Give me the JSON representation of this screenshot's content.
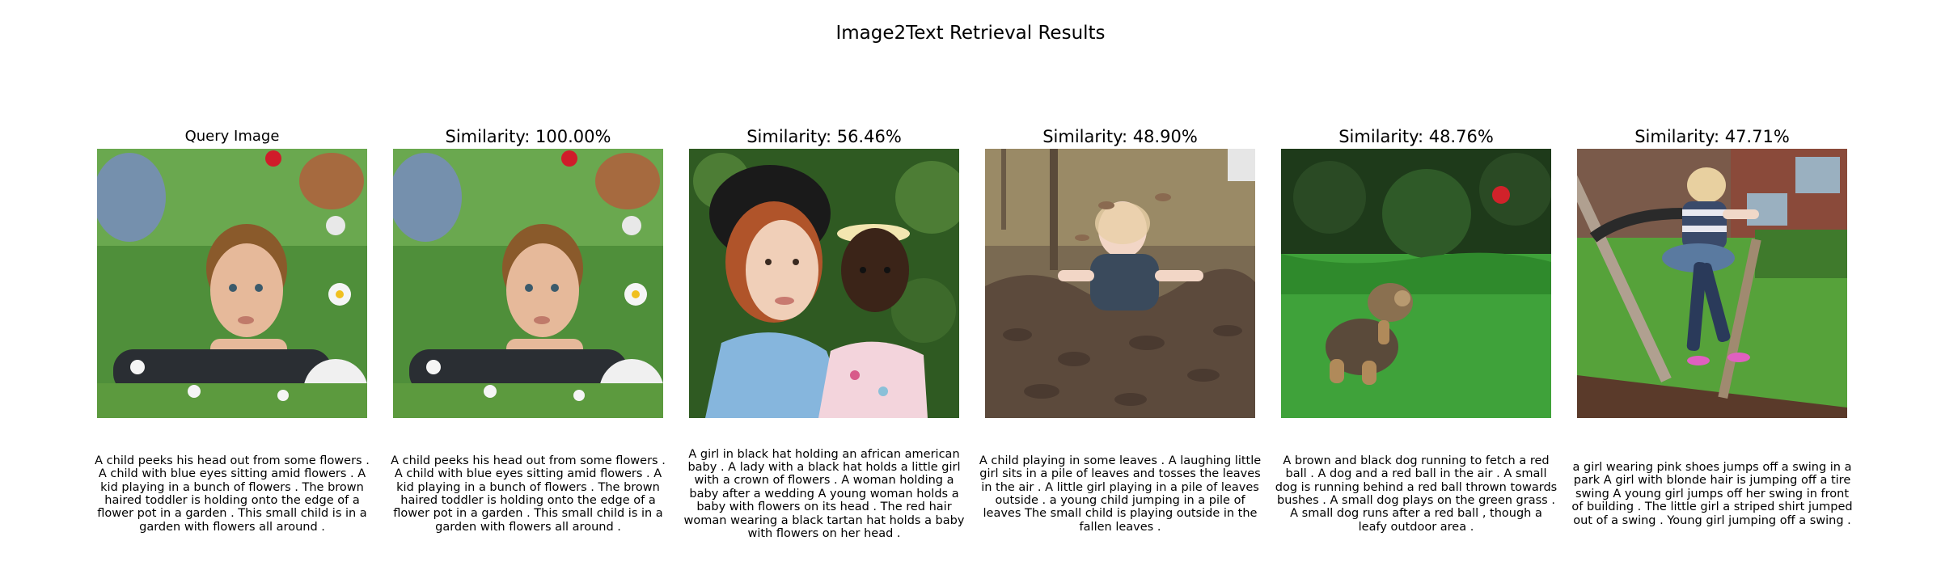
{
  "figure": {
    "title": "Image2Text Retrieval Results"
  },
  "panels": [
    {
      "title": "Query Image",
      "image_icon": "boy-in-flowers-photo",
      "caption": "A child peeks his head out from some flowers . A child with blue eyes sitting amid flowers . A kid playing in a bunch of flowers . The brown haired toddler is holding onto the edge of a flower pot in a garden . This small child is in a garden with flowers all around ."
    },
    {
      "title": "Similarity: 100.00%",
      "image_icon": "boy-in-flowers-photo",
      "caption": "A child peeks his head out from some flowers . A child with blue eyes sitting amid flowers . A kid playing in a bunch of flowers . The brown haired toddler is holding onto the edge of a flower pot in a garden . This small child is in a garden with flowers all around ."
    },
    {
      "title": "Similarity: 56.46%",
      "image_icon": "woman-and-baby-photo",
      "caption": "A girl in black hat holding an african american baby . A lady with a black hat holds a little girl with a crown of flowers . A woman holding a baby after a wedding A young woman holds a baby with flowers on its head . The red hair woman wearing a black tartan hat holds a baby with flowers on her head ."
    },
    {
      "title": "Similarity: 48.90%",
      "image_icon": "child-in-leaves-photo",
      "caption": "A child playing in some leaves . A laughing little girl sits in a pile of leaves and tosses the leaves in the air . A little girl playing in a pile of leaves outside . a young child jumping in a pile of leaves The small child is playing outside in the fallen leaves ."
    },
    {
      "title": "Similarity: 48.76%",
      "image_icon": "dog-chasing-ball-photo",
      "caption": "A brown and black dog running to fetch a red ball . A dog and a red ball in the air . A small dog is running behind a red ball thrown towards bushes . A small dog plays on the green grass . A small dog runs after a red ball , though a leafy outdoor area ."
    },
    {
      "title": "Similarity: 47.71%",
      "image_icon": "girl-jumping-swing-photo",
      "caption": "a girl wearing pink shoes jumps off a swing in a park A girl with blonde hair is jumping off a tire swing A young girl jumps off her swing in front of building . The little girl a striped shirt jumped out of a swing . Young girl jumping off a swing ."
    }
  ]
}
